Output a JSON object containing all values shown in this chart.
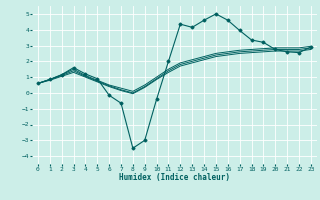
{
  "xlabel": "Humidex (Indice chaleur)",
  "xlim": [
    -0.5,
    23.5
  ],
  "ylim": [
    -4.5,
    5.5
  ],
  "yticks": [
    -4,
    -3,
    -2,
    -1,
    0,
    1,
    2,
    3,
    4,
    5
  ],
  "xticks": [
    0,
    1,
    2,
    3,
    4,
    5,
    6,
    7,
    8,
    9,
    10,
    11,
    12,
    13,
    14,
    15,
    16,
    17,
    18,
    19,
    20,
    21,
    22,
    23
  ],
  "bg_color": "#cceee8",
  "line_color": "#006060",
  "grid_color": "#ffffff",
  "lines": [
    [
      0.6,
      0.85,
      1.15,
      1.6,
      1.2,
      0.9,
      -0.15,
      -0.65,
      -3.5,
      -3.0,
      -0.4,
      2.0,
      4.35,
      4.15,
      4.6,
      5.0,
      4.6,
      3.95,
      3.35,
      3.2,
      2.75,
      2.6,
      2.55,
      2.9
    ],
    [
      0.6,
      0.85,
      1.15,
      1.5,
      1.1,
      0.8,
      0.5,
      0.3,
      0.1,
      0.5,
      1.0,
      1.5,
      1.9,
      2.1,
      2.3,
      2.5,
      2.6,
      2.7,
      2.75,
      2.8,
      2.85,
      2.85,
      2.85,
      2.95
    ],
    [
      0.6,
      0.85,
      1.1,
      1.4,
      1.05,
      0.75,
      0.45,
      0.2,
      0.0,
      0.4,
      0.9,
      1.4,
      1.8,
      2.0,
      2.2,
      2.4,
      2.5,
      2.6,
      2.65,
      2.7,
      2.75,
      2.75,
      2.75,
      2.85
    ],
    [
      0.6,
      0.8,
      1.05,
      1.3,
      1.0,
      0.7,
      0.4,
      0.15,
      -0.05,
      0.35,
      0.85,
      1.3,
      1.7,
      1.9,
      2.1,
      2.3,
      2.4,
      2.5,
      2.55,
      2.6,
      2.65,
      2.65,
      2.65,
      2.75
    ]
  ],
  "tick_fontsize": 4.5,
  "xlabel_fontsize": 5.5,
  "marker_size": 1.5,
  "linewidth_main": 0.8,
  "linewidth_trend": 0.7
}
